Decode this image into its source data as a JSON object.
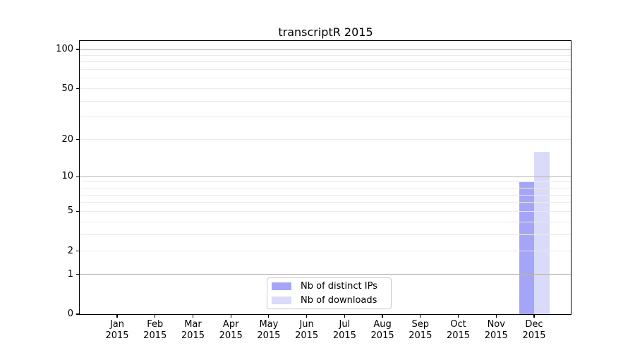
{
  "chart_data": {
    "type": "bar",
    "title": "transcriptR 2015",
    "x_year": "2015",
    "categories": [
      "Jan",
      "Feb",
      "Mar",
      "Apr",
      "May",
      "Jun",
      "Jul",
      "Aug",
      "Sep",
      "Oct",
      "Nov",
      "Dec"
    ],
    "series": [
      {
        "name": "Nb of distinct IPs",
        "color": "#a5a5f7",
        "values": [
          0,
          0,
          0,
          0,
          0,
          0,
          0,
          0,
          0,
          0,
          0,
          9
        ]
      },
      {
        "name": "Nb of downloads",
        "color": "#dadafa",
        "values": [
          0,
          0,
          0,
          0,
          0,
          0,
          0,
          0,
          0,
          0,
          0,
          16
        ]
      }
    ],
    "yscale": "log1p",
    "ylabel": "",
    "xlabel": "",
    "ylim": [
      0,
      114
    ],
    "y_tick_values": [
      0,
      1,
      2,
      5,
      10,
      20,
      50,
      100
    ],
    "y_major_gridlines": [
      1,
      10,
      100
    ],
    "y_minor_gridlines": [
      2,
      3,
      4,
      5,
      6,
      7,
      8,
      9,
      20,
      30,
      40,
      50,
      60,
      70,
      80,
      90
    ],
    "grid": true,
    "legend_position": "lower center"
  },
  "colors": {
    "background": "#ffffff",
    "axis": "#000000",
    "tick_text": "#000000",
    "major_grid": "#b3b3b3",
    "minor_grid": "#eaeaea",
    "legend_border": "#c9c9c9"
  }
}
